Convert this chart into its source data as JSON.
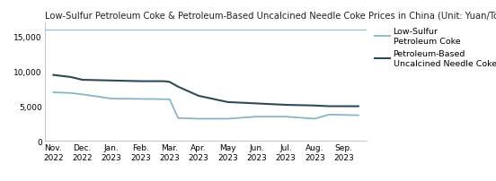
{
  "title": "Low-Sulfur Petroleum Coke & Petroleum-Based Uncalcined Needle Coke Prices in China (Unit: Yuan/Ton)",
  "x_labels": [
    "Nov.\n2022",
    "Dec.\n2022",
    "Jan.\n2023",
    "Feb.\n2023",
    "Mar.\n2023",
    "Apr.\n2023",
    "May\n2023",
    "Jun.\n2023",
    "Jul.\n2023",
    "Aug.\n2023",
    "Sep.\n2023"
  ],
  "low_sulfur_x": [
    0,
    0.6,
    1.0,
    2.0,
    3.0,
    4.0,
    4.3,
    5.0,
    6.0,
    7.0,
    8.0,
    9.0,
    9.5,
    10.5
  ],
  "low_sulfur_y": [
    7000,
    6900,
    6700,
    6100,
    6050,
    6000,
    3300,
    3200,
    3200,
    3500,
    3500,
    3200,
    3800,
    3700
  ],
  "needle_coke_x": [
    0,
    0.6,
    1.0,
    2.0,
    3.0,
    3.8,
    4.0,
    4.3,
    5.0,
    6.0,
    7.0,
    8.0,
    9.0,
    9.5,
    10.5
  ],
  "needle_coke_y": [
    9500,
    9200,
    8800,
    8700,
    8600,
    8600,
    8500,
    7800,
    6500,
    5600,
    5400,
    5200,
    5100,
    5000,
    5000
  ],
  "reference_line_y": 16000,
  "low_sulfur_color": "#8ab4c8",
  "needle_coke_color": "#2d4a5a",
  "reference_line_color": "#8ab4c8",
  "ylim": [
    0,
    17000
  ],
  "yticks": [
    0,
    5000,
    10000,
    15000
  ],
  "legend_low_sulfur": "Low-Sulfur\nPetroleum Coke",
  "legend_needle_coke": "Petroleum-Based\nUncalcined Needle Coke",
  "title_fontsize": 7.2,
  "axis_fontsize": 6.5,
  "legend_fontsize": 6.8,
  "bg_color": "#ffffff"
}
